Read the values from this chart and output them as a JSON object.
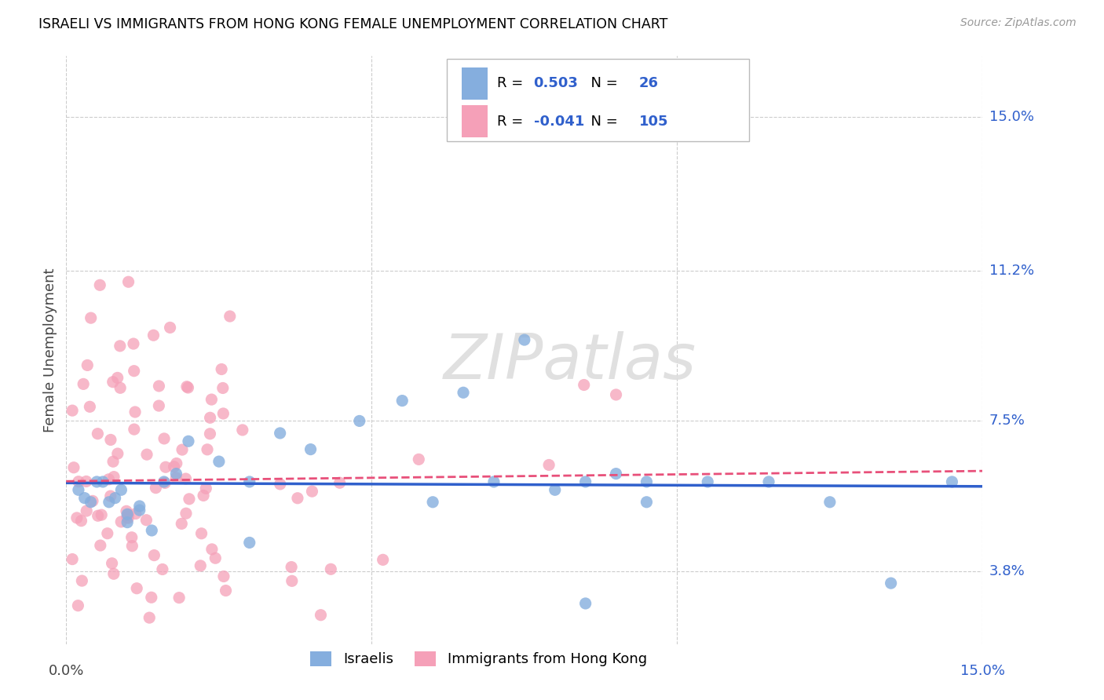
{
  "title": "ISRAELI VS IMMIGRANTS FROM HONG KONG FEMALE UNEMPLOYMENT CORRELATION CHART",
  "source": "Source: ZipAtlas.com",
  "ylabel": "Female Unemployment",
  "ytick_labels": [
    "15.0%",
    "11.2%",
    "7.5%",
    "3.8%"
  ],
  "ytick_values": [
    0.15,
    0.112,
    0.075,
    0.038
  ],
  "xlim": [
    0.0,
    0.15
  ],
  "ylim": [
    0.02,
    0.165
  ],
  "legend_R_israeli": "0.503",
  "legend_N_israeli": "26",
  "legend_R_hk": "-0.041",
  "legend_N_hk": "105",
  "color_israeli": "#85AEDE",
  "color_hk": "#F5A0B8",
  "color_line_israeli": "#3060CC",
  "color_line_hk": "#E8507A",
  "color_blue": "#3060CC",
  "watermark": "ZIPatlas",
  "grid_color": "#cccccc"
}
